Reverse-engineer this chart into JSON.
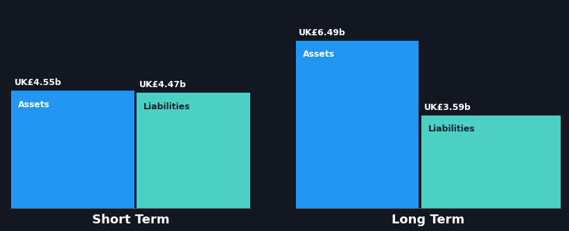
{
  "background_color": "#131722",
  "short_term": {
    "assets_value": 4.55,
    "liabilities_value": 4.47,
    "assets_label": "Assets",
    "liabilities_label": "Liabilities",
    "assets_value_text": "UK£4.55b",
    "liabilities_value_text": "UK£4.47b"
  },
  "long_term": {
    "assets_value": 6.49,
    "liabilities_value": 3.59,
    "assets_label": "Assets",
    "liabilities_label": "Liabilities",
    "assets_value_text": "UK£6.49b",
    "liabilities_value_text": "UK£3.59b"
  },
  "assets_color": "#2196f3",
  "liabilities_color": "#4dd0c4",
  "label_text_color": "#ffffff",
  "value_text_color": "#ffffff",
  "liabilities_inner_text_color": "#1a2332",
  "group_label_color": "#ffffff",
  "short_term_label": "Short Term",
  "long_term_label": "Long Term",
  "max_value": 7.0,
  "group_label_fontsize": 13,
  "bar_label_fontsize": 9,
  "value_label_fontsize": 9
}
